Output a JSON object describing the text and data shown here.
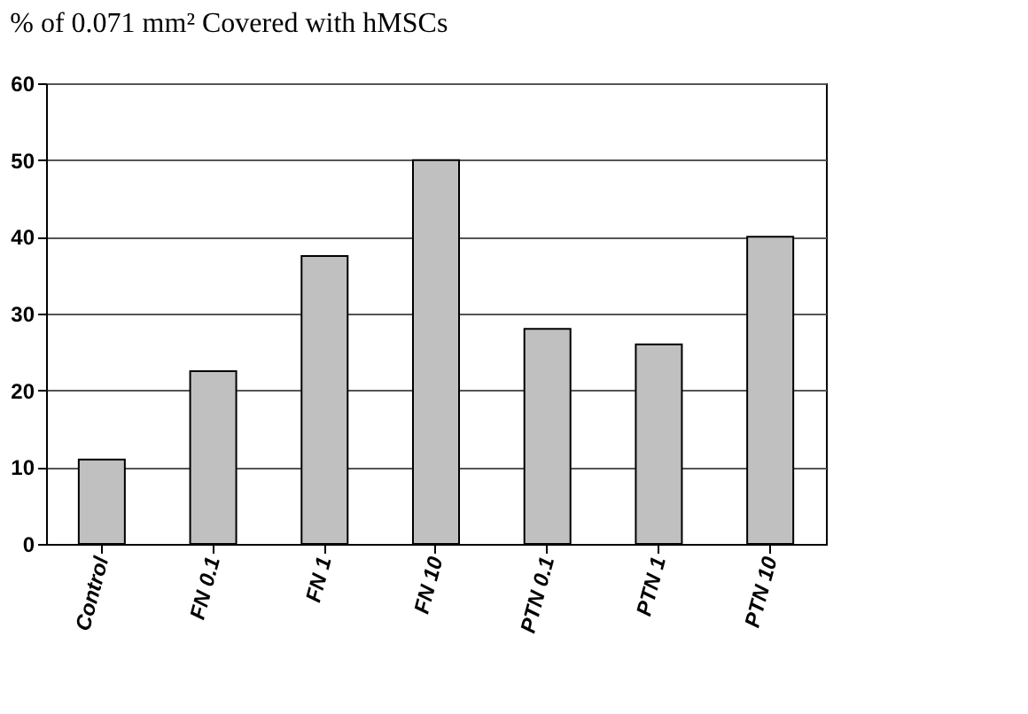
{
  "chart_data": {
    "type": "bar",
    "title": "% of 0.071 mm² Covered with hMSCs",
    "categories": [
      "Control",
      "FN 0.1",
      "FN 1",
      "FN 10",
      "PTN 0.1",
      "PTN 1",
      "PTN 10"
    ],
    "values": [
      11,
      22.5,
      37.5,
      50,
      28,
      26,
      40
    ],
    "color": "#c0c0c0",
    "ylim": [
      0,
      60
    ],
    "yticks": [
      0,
      10,
      20,
      30,
      40,
      50,
      60
    ],
    "grid": "y"
  }
}
